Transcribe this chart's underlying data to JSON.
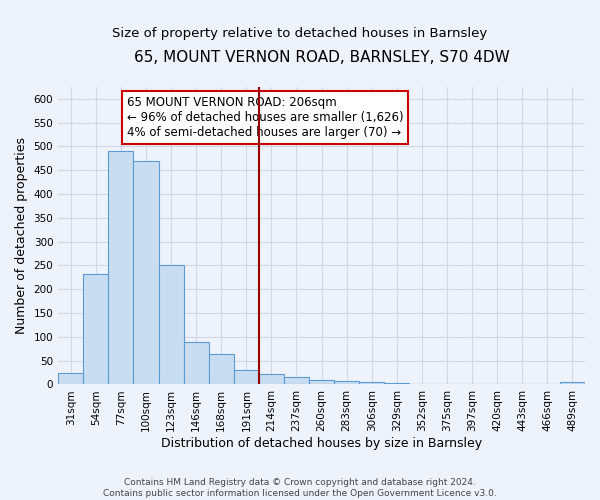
{
  "title": "65, MOUNT VERNON ROAD, BARNSLEY, S70 4DW",
  "subtitle": "Size of property relative to detached houses in Barnsley",
  "xlabel": "Distribution of detached houses by size in Barnsley",
  "ylabel": "Number of detached properties",
  "bar_labels": [
    "31sqm",
    "54sqm",
    "77sqm",
    "100sqm",
    "123sqm",
    "146sqm",
    "168sqm",
    "191sqm",
    "214sqm",
    "237sqm",
    "260sqm",
    "283sqm",
    "306sqm",
    "329sqm",
    "352sqm",
    "375sqm",
    "397sqm",
    "420sqm",
    "443sqm",
    "466sqm",
    "489sqm"
  ],
  "bar_heights": [
    25,
    233,
    491,
    469,
    250,
    90,
    63,
    30,
    22,
    15,
    10,
    8,
    5,
    3,
    2,
    1,
    1,
    1,
    0,
    0,
    5
  ],
  "bar_color": "#c8ddf0",
  "bar_edge_color": "#5b9bd5",
  "vline_x_index": 8,
  "vline_color": "#990000",
  "annotation_box_text": "65 MOUNT VERNON ROAD: 206sqm\n← 96% of detached houses are smaller (1,626)\n4% of semi-detached houses are larger (70) →",
  "annotation_box_facecolor": "#ffffff",
  "annotation_box_edgecolor": "#cc0000",
  "ylim": [
    0,
    625
  ],
  "yticks": [
    0,
    50,
    100,
    150,
    200,
    250,
    300,
    350,
    400,
    450,
    500,
    550,
    600
  ],
  "footer_text": "Contains HM Land Registry data © Crown copyright and database right 2024.\nContains public sector information licensed under the Open Government Licence v3.0.",
  "background_color": "#eef2fb",
  "grid_color": "#d0d8e8",
  "title_fontsize": 11,
  "subtitle_fontsize": 9.5,
  "axis_label_fontsize": 9,
  "tick_fontsize": 7.5,
  "annotation_fontsize": 8.5,
  "footer_fontsize": 6.5
}
